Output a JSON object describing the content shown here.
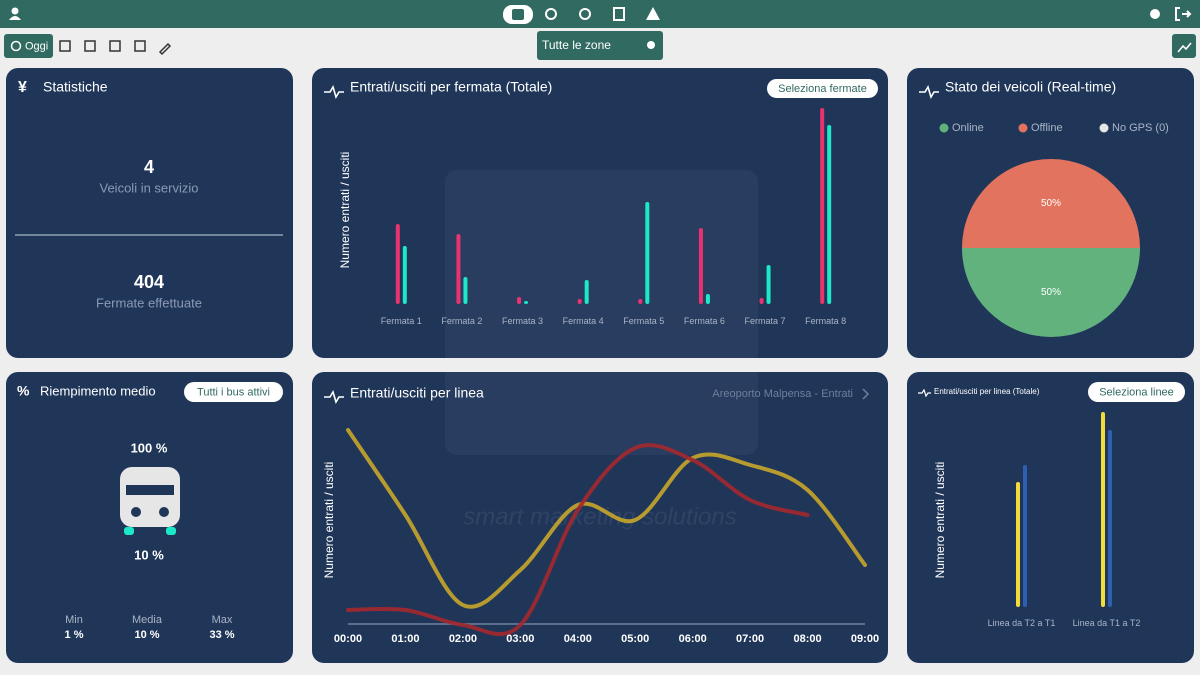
{
  "toolbar": {
    "today": "Oggi",
    "zone": "Tutte le zone"
  },
  "stats": {
    "title": "Statistiche",
    "items": [
      {
        "value": 4,
        "label": "Veicoli in servizio"
      },
      {
        "value": 404,
        "label": "Fermate effettuate"
      }
    ]
  },
  "fill": {
    "title": "Riempimento medio",
    "button": "Tutti i bus attivi",
    "top": "100 %",
    "bottom": "10 %",
    "stats": [
      {
        "label": "Min",
        "value": "1 %"
      },
      {
        "label": "Media",
        "value": "10 %"
      },
      {
        "label": "Max",
        "value": "33 %"
      }
    ]
  },
  "watermark": "smart marketing solutions",
  "chart_data": [
    {
      "type": "bar",
      "title": "Entrati/usciti per fermata (Totale)",
      "button": "Seleziona fermate",
      "y_label": "Numero entrati / usciti",
      "categories": [
        "Fermata 1",
        "Fermata 2",
        "Fermata 3",
        "Fermata 4",
        "Fermata 5",
        "Fermata 6",
        "Fermata 7",
        "Fermata 8"
      ],
      "series": [
        {
          "color": "#e8336f",
          "values": [
            80,
            70,
            7,
            5,
            5,
            76,
            6,
            196
          ]
        },
        {
          "color": "#1de9c8",
          "values": [
            58,
            27,
            3,
            24,
            102,
            10,
            39,
            179
          ]
        }
      ],
      "ylim": [
        0,
        200
      ]
    },
    {
      "type": "pie",
      "title": "Stato dei veicoli (Real-time)",
      "categories": [
        "Online",
        "Offline",
        "No GPS (0)"
      ],
      "values": [
        50,
        50,
        0
      ],
      "value_labels": [
        "50%",
        "50%",
        null
      ],
      "colors": [
        "#62b27e",
        "#e2735f",
        "#e6e6e6"
      ]
    },
    {
      "type": "line",
      "title": "Entrati/usciti per linea",
      "subtitle": "Areoporto Malpensa - Entrati",
      "y_label": "Numero entrati / usciti",
      "categories": [
        "00:00",
        "01:00",
        "02:00",
        "03:00",
        "04:00",
        "05:00",
        "06:00",
        "07:00",
        "08:00",
        "09:00"
      ],
      "series": [
        {
          "color": "#c9a62a",
          "values": [
            195,
            110,
            20,
            55,
            120,
            105,
            167,
            160,
            135,
            60
          ]
        },
        {
          "color": "#a3282e",
          "values": [
            15,
            15,
            0,
            0,
            115,
            177,
            165,
            125,
            110,
            null
          ]
        }
      ],
      "ylim": [
        0,
        200
      ]
    },
    {
      "type": "bar",
      "title": "Entrati/usciti per linea (Totale)",
      "button": "Seleziona linee",
      "y_label": "Numero entrati / usciti",
      "categories": [
        "Linea da T2 a T1",
        "Linea da T1 a T2"
      ],
      "series": [
        {
          "color": "#f2dc3a",
          "values": [
            125,
            195
          ]
        },
        {
          "color": "#2f5fb3",
          "values": [
            142,
            177
          ]
        }
      ],
      "ylim": [
        0,
        200
      ]
    }
  ]
}
